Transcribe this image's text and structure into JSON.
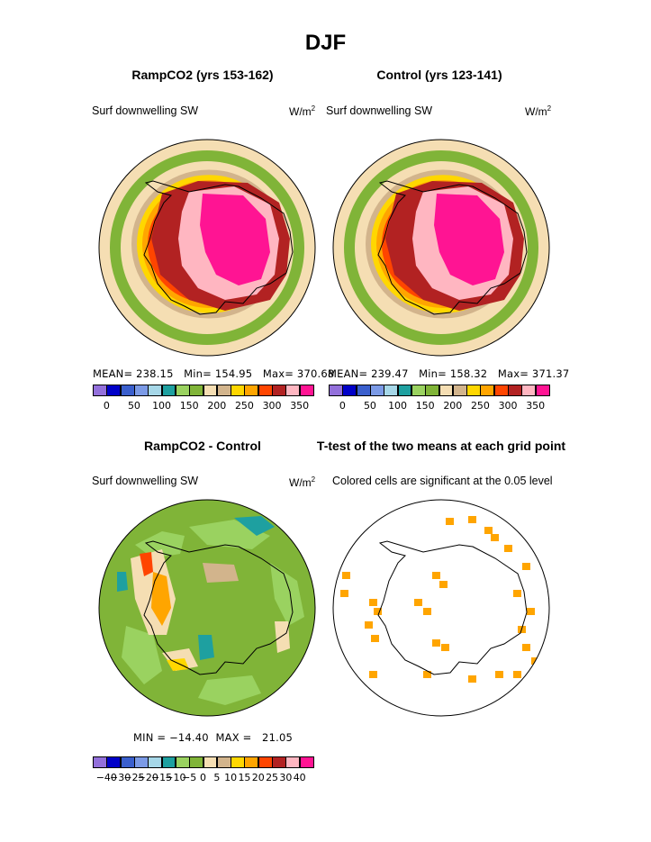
{
  "figure": {
    "title": "DJF",
    "colors": {
      "land_outline": "#000000"
    }
  },
  "chart_data": [
    {
      "type": "heatmap",
      "projection": "south-polar-stereographic",
      "title": "RampCO2 (yrs 153-162)",
      "variable": "Surf downwelling SW",
      "units": "W/m",
      "units_sup": "2",
      "stats_text": "MEAN= 238.15   Min= 154.95   Max= 370.68",
      "stats": {
        "mean": 238.15,
        "min": 154.95,
        "max": 370.68
      },
      "colorbar": {
        "colors": [
          "#9370db",
          "#0000c8",
          "#3a5fcd",
          "#7b9ae6",
          "#a6d7e8",
          "#1ea0a0",
          "#9ad260",
          "#80b438",
          "#f5deb3",
          "#d2b48c",
          "#ffd700",
          "#ffa500",
          "#ff4500",
          "#b22222",
          "#ffb6c1",
          "#ff1493"
        ],
        "ticks": [
          "0",
          "50",
          "100",
          "150",
          "200",
          "250",
          "300",
          "350"
        ]
      }
    },
    {
      "type": "heatmap",
      "projection": "south-polar-stereographic",
      "title": "Control (yrs 123-141)",
      "variable": "Surf downwelling SW",
      "units": "W/m",
      "units_sup": "2",
      "stats_text": "MEAN= 239.47   Min= 158.32   Max= 371.37",
      "stats": {
        "mean": 239.47,
        "min": 158.32,
        "max": 371.37
      },
      "colorbar": {
        "colors": [
          "#9370db",
          "#0000c8",
          "#3a5fcd",
          "#7b9ae6",
          "#a6d7e8",
          "#1ea0a0",
          "#9ad260",
          "#80b438",
          "#f5deb3",
          "#d2b48c",
          "#ffd700",
          "#ffa500",
          "#ff4500",
          "#b22222",
          "#ffb6c1",
          "#ff1493"
        ],
        "ticks": [
          "0",
          "50",
          "100",
          "150",
          "200",
          "250",
          "300",
          "350"
        ]
      }
    },
    {
      "type": "heatmap",
      "projection": "south-polar-stereographic",
      "title": "RampCO2 - Control",
      "variable": "Surf downwelling SW",
      "units": "W/m",
      "units_sup": "2",
      "stats_text": "MIN = −14.40  MAX =   21.05",
      "stats": {
        "min": -14.4,
        "max": 21.05
      },
      "colorbar": {
        "colors": [
          "#9370db",
          "#0000c8",
          "#3a5fcd",
          "#7b9ae6",
          "#a6d7e8",
          "#1ea0a0",
          "#9ad260",
          "#80b438",
          "#f5deb3",
          "#d2b48c",
          "#ffd700",
          "#ffa500",
          "#ff4500",
          "#b22222",
          "#ffb6c1",
          "#ff1493"
        ],
        "ticks": [
          "−40",
          "−30",
          "−25",
          "−20",
          "−15",
          "−10",
          "−5",
          "0",
          "5",
          "10",
          "15",
          "20",
          "25",
          "30",
          "40"
        ]
      }
    },
    {
      "type": "heatmap",
      "projection": "south-polar-stereographic",
      "title": "T-test of the two means at each grid point",
      "subtitle": "Colored cells are significant at the 0.05 level",
      "colors": {
        "significant": "#ffa500"
      }
    }
  ]
}
